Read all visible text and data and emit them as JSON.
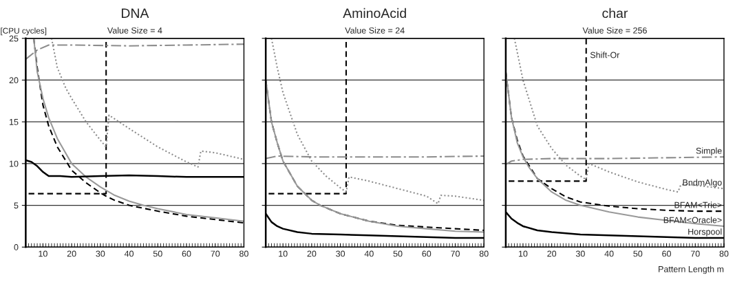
{
  "chart_data": [
    {
      "type": "line",
      "title": "DNA",
      "subtitle": "Value Size = 4",
      "ylabel": "[CPU cycles]",
      "xlim": [
        4,
        80
      ],
      "xticks": [
        10,
        20,
        30,
        40,
        50,
        60,
        70,
        80
      ],
      "ylim": [
        0,
        25
      ],
      "yticks": [
        0,
        5,
        10,
        15,
        20,
        25
      ],
      "grid": "y",
      "legend": false,
      "series": [
        {
          "color": "#000000",
          "line_style": "dashed",
          "x": [
            5,
            32,
            32
          ],
          "values": [
            6.4,
            6.4,
            25
          ]
        },
        {
          "color": "#8c8c8c",
          "line_style": "dashdot",
          "x": [
            4,
            8,
            12,
            20,
            40,
            60,
            80
          ],
          "values": [
            22.5,
            23.6,
            24.2,
            24.2,
            24.1,
            24.2,
            24.3
          ]
        },
        {
          "color": "#8c8c8c",
          "line_style": "dotted",
          "x": [
            13,
            15,
            18,
            20,
            25,
            30,
            32,
            33,
            40,
            50,
            60,
            64,
            65,
            70,
            80
          ],
          "values": [
            25,
            21.5,
            19,
            17.8,
            15,
            12.8,
            12,
            15.8,
            14.2,
            12,
            10.2,
            9.6,
            11.5,
            11.3,
            10.5
          ]
        },
        {
          "color": "#000000",
          "line_style": "dashed",
          "x": [
            6.8,
            8,
            10,
            12,
            15,
            20,
            25,
            30,
            32,
            35,
            40,
            50,
            60,
            70,
            80
          ],
          "values": [
            25,
            21.5,
            17,
            14.5,
            12,
            9.2,
            7.7,
            6.5,
            6.1,
            5.6,
            5,
            4.3,
            3.7,
            3.3,
            2.9
          ]
        },
        {
          "color": "#999999",
          "line_style": "solid",
          "x": [
            6.8,
            8,
            10,
            12,
            15,
            20,
            25,
            30,
            35,
            40,
            45,
            50,
            60,
            70,
            80
          ],
          "values": [
            25,
            21,
            17.8,
            15.5,
            13,
            10,
            8.4,
            7.2,
            6.2,
            5.5,
            5,
            4.6,
            3.9,
            3.5,
            3.1
          ]
        },
        {
          "color": "#000000",
          "line_style": "solid",
          "x": [
            4,
            6,
            8,
            10,
            12,
            14,
            16,
            20,
            30,
            40,
            50,
            60,
            70,
            80
          ],
          "values": [
            10.4,
            10.2,
            9.7,
            9,
            8.5,
            8.5,
            8.5,
            8.4,
            8.5,
            8.6,
            8.5,
            8.4,
            8.4,
            8.4
          ]
        }
      ]
    },
    {
      "type": "line",
      "title": "AminoAcid",
      "subtitle": "Value Size = 24",
      "xlim": [
        4,
        80
      ],
      "xticks": [
        10,
        20,
        30,
        40,
        50,
        60,
        70,
        80
      ],
      "ylim": [
        0,
        25
      ],
      "yticks": [
        0,
        5,
        10,
        15,
        20,
        25
      ],
      "grid": "y",
      "legend": false,
      "tick_labels": "x",
      "series": [
        {
          "color": "#000000",
          "line_style": "dashed",
          "x": [
            5,
            32,
            32
          ],
          "values": [
            6.4,
            6.4,
            25
          ]
        },
        {
          "color": "#8c8c8c",
          "line_style": "dashdot",
          "x": [
            4,
            8,
            20,
            40,
            60,
            80
          ],
          "values": [
            10.6,
            10.9,
            10.8,
            10.8,
            10.8,
            10.9
          ]
        },
        {
          "color": "#8c8c8c",
          "line_style": "dotted",
          "x": [
            6,
            8,
            10,
            15,
            20,
            25,
            30,
            32,
            33,
            40,
            50,
            60,
            64,
            65,
            70,
            80
          ],
          "values": [
            25,
            21.5,
            18.5,
            13.5,
            10.3,
            8.5,
            7.1,
            6.6,
            8.4,
            7.9,
            7,
            6.1,
            5.2,
            6.2,
            6.1,
            5.6
          ]
        },
        {
          "color": "#000000",
          "line_style": "dashed",
          "x": [
            4,
            6,
            8,
            10,
            15,
            20,
            23,
            30,
            40,
            50,
            60,
            70,
            80
          ],
          "values": [
            20,
            15,
            12.5,
            10.3,
            7.3,
            5.6,
            5,
            4,
            3.1,
            2.6,
            2.4,
            2.2,
            2
          ]
        },
        {
          "color": "#999999",
          "line_style": "solid",
          "x": [
            4,
            6,
            8,
            10,
            15,
            20,
            23,
            30,
            40,
            50,
            60,
            70,
            80
          ],
          "values": [
            20,
            15,
            12.5,
            10.3,
            7.3,
            5.6,
            5,
            4,
            3.1,
            2.5,
            2.2,
            1.9,
            1.8
          ]
        },
        {
          "color": "#000000",
          "line_style": "solid",
          "x": [
            4,
            6,
            8,
            10,
            15,
            20,
            30,
            40,
            50,
            60,
            70,
            80
          ],
          "values": [
            4,
            3,
            2.5,
            2.2,
            1.8,
            1.6,
            1.5,
            1.4,
            1.3,
            1.2,
            1.1,
            1.1
          ]
        }
      ]
    },
    {
      "type": "line",
      "title": "char",
      "subtitle": "Value Size = 256",
      "xlabel": "Pattern Length m",
      "xlim": [
        4,
        80
      ],
      "xticks": [
        10,
        20,
        30,
        40,
        50,
        60,
        70,
        80
      ],
      "ylim": [
        0,
        25
      ],
      "yticks": [
        0,
        5,
        10,
        15,
        20,
        25
      ],
      "grid": "y",
      "legend": false,
      "tick_labels": "x",
      "series": [
        {
          "name": "Shift-Or",
          "color": "#000000",
          "line_style": "dashed",
          "x": [
            5,
            32,
            32
          ],
          "values": [
            7.9,
            7.9,
            25
          ]
        },
        {
          "name": "Simple",
          "color": "#8c8c8c",
          "line_style": "dashdot",
          "x": [
            4,
            6,
            10,
            20,
            40,
            60,
            80
          ],
          "values": [
            9.9,
            10.3,
            10.5,
            10.6,
            10.6,
            10.7,
            10.8
          ]
        },
        {
          "name": "BndmAlgo",
          "color": "#8c8c8c",
          "line_style": "dotted",
          "x": [
            7,
            10,
            15,
            20,
            25,
            30,
            32,
            33,
            40,
            50,
            60,
            64,
            65,
            70,
            80
          ],
          "values": [
            25,
            20,
            14.5,
            11.8,
            9.8,
            8.5,
            8.1,
            10,
            9,
            7.8,
            6.9,
            6.6,
            7.5,
            7.4,
            7
          ]
        },
        {
          "name": "BFAM<Trie>",
          "color": "#000000",
          "line_style": "dashed",
          "x": [
            4,
            6,
            8,
            10,
            15,
            20,
            25,
            30,
            40,
            50,
            60,
            70,
            80
          ],
          "values": [
            21,
            15.5,
            12.8,
            10.9,
            8.2,
            7,
            6,
            5.4,
            4.9,
            4.6,
            4.4,
            4.3,
            4.3
          ]
        },
        {
          "name": "BFAM<Oracle>",
          "color": "#999999",
          "line_style": "solid",
          "x": [
            4,
            6,
            8,
            10,
            12,
            15,
            20,
            25,
            30,
            40,
            50,
            60,
            70,
            80
          ],
          "values": [
            21,
            15.5,
            12.5,
            10.8,
            9.6,
            8.2,
            6.6,
            5.6,
            5,
            4.2,
            3.6,
            3.2,
            2.8,
            2.5
          ]
        },
        {
          "name": "Horspool",
          "color": "#000000",
          "line_style": "solid",
          "x": [
            4,
            6,
            8,
            10,
            15,
            20,
            30,
            40,
            50,
            60,
            70,
            80
          ],
          "values": [
            4.2,
            3.4,
            2.9,
            2.5,
            2,
            1.8,
            1.5,
            1.4,
            1.3,
            1.2,
            1.1,
            1.1
          ]
        }
      ]
    }
  ]
}
